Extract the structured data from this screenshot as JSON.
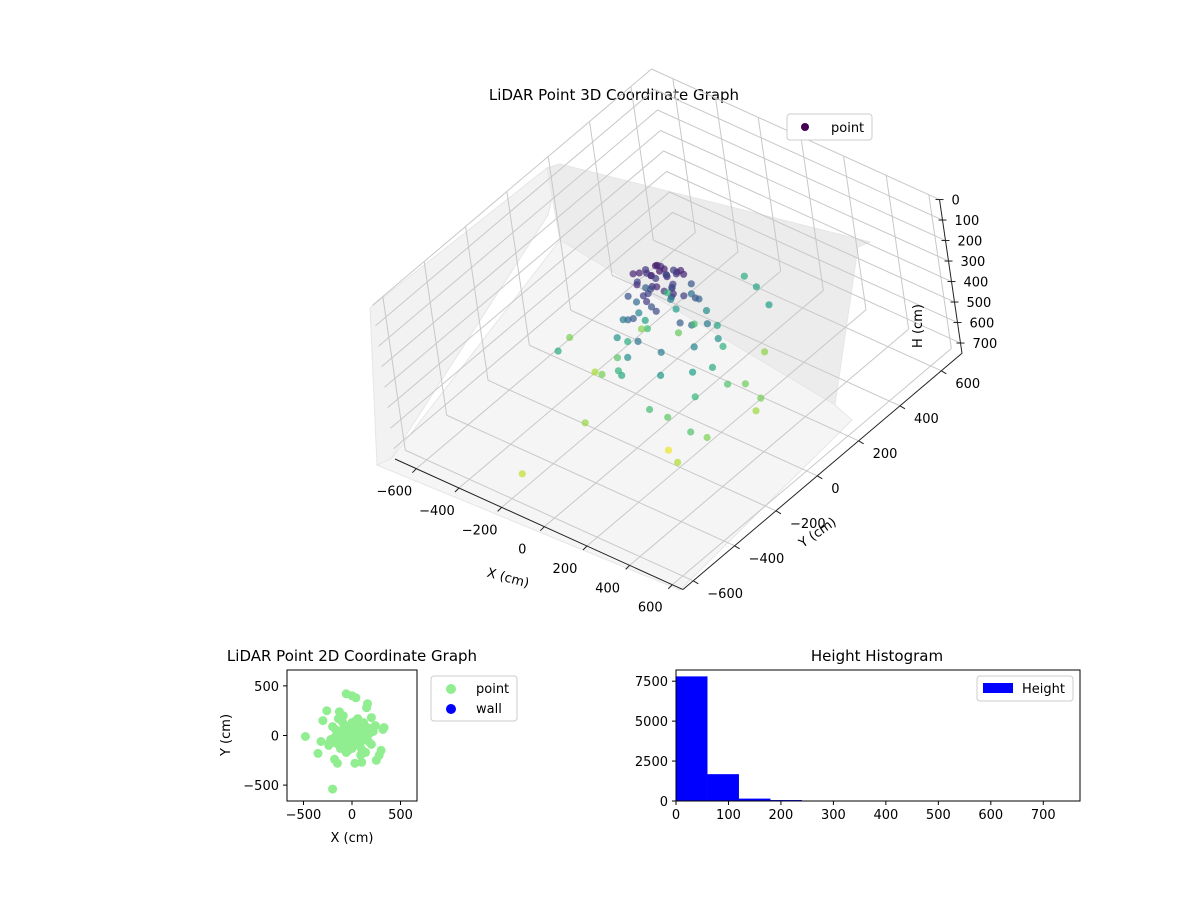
{
  "chart_data": [
    {
      "type": "scatter3d",
      "title": "LiDAR Point 3D Coordinate Graph",
      "xlabel": "X (cm)",
      "ylabel": "Y (cm)",
      "zlabel": "H (cm)",
      "xlim": [
        -700,
        650
      ],
      "ylim": [
        -650,
        700
      ],
      "zlim": [
        0,
        750
      ],
      "z_inverted": true,
      "xticks": [
        -600,
        -400,
        -200,
        0,
        200,
        400,
        600
      ],
      "yticks": [
        -600,
        -400,
        -200,
        0,
        200,
        400,
        600
      ],
      "zticks": [
        0,
        100,
        200,
        300,
        400,
        500,
        600,
        700
      ],
      "grid": true,
      "legend": {
        "placement": "top-right",
        "entries": [
          "point"
        ]
      },
      "colormap": "viridis",
      "series": [
        {
          "name": "point",
          "points": [
            [
              0,
              0,
              30
            ],
            [
              20,
              -10,
              40
            ],
            [
              -20,
              10,
              50
            ],
            [
              10,
              20,
              60
            ],
            [
              -15,
              -20,
              70
            ],
            [
              30,
              10,
              80
            ],
            [
              -30,
              -5,
              90
            ],
            [
              5,
              30,
              100
            ],
            [
              -5,
              -30,
              110
            ],
            [
              40,
              -20,
              120
            ],
            [
              -40,
              20,
              130
            ],
            [
              25,
              35,
              140
            ],
            [
              -25,
              -35,
              150
            ],
            [
              50,
              0,
              160
            ],
            [
              -50,
              0,
              170
            ],
            [
              0,
              50,
              180
            ],
            [
              0,
              -50,
              190
            ],
            [
              60,
              30,
              60
            ],
            [
              -60,
              -30,
              70
            ],
            [
              35,
              -45,
              80
            ],
            [
              -35,
              45,
              90
            ],
            [
              70,
              -10,
              100
            ],
            [
              -70,
              10,
              110
            ],
            [
              15,
              65,
              120
            ],
            [
              -15,
              -65,
              130
            ],
            [
              80,
              40,
              70
            ],
            [
              -80,
              -40,
              75
            ],
            [
              45,
              60,
              85
            ],
            [
              -45,
              -60,
              95
            ],
            [
              90,
              -25,
              105
            ],
            [
              -90,
              25,
              115
            ],
            [
              20,
              -85,
              125
            ],
            [
              -20,
              85,
              135
            ],
            [
              100,
              10,
              140
            ],
            [
              -100,
              -10,
              150
            ],
            [
              55,
              -80,
              160
            ],
            [
              -55,
              80,
              170
            ],
            [
              110,
              50,
              180
            ],
            [
              -110,
              -50,
              190
            ],
            [
              30,
              110,
              200
            ],
            [
              -30,
              -110,
              210
            ],
            [
              120,
              -40,
              220
            ],
            [
              -120,
              40,
              230
            ],
            [
              75,
              95,
              240
            ],
            [
              -75,
              -95,
              250
            ],
            [
              130,
              0,
              260
            ],
            [
              -130,
              0,
              270
            ],
            [
              0,
              130,
              280
            ],
            [
              0,
              -130,
              290
            ],
            [
              140,
              60,
              300
            ],
            [
              -140,
              -60,
              310
            ],
            [
              85,
              -110,
              320
            ],
            [
              -85,
              110,
              330
            ],
            [
              150,
              -20,
              340
            ],
            [
              -150,
              20,
              350
            ],
            [
              40,
              150,
              360
            ],
            [
              -40,
              -150,
              370
            ],
            [
              160,
              80,
              380
            ],
            [
              -160,
              -80,
              390
            ],
            [
              100,
              -140,
              400
            ],
            [
              -100,
              140,
              410
            ],
            [
              170,
              -60,
              420
            ],
            [
              -170,
              60,
              430
            ],
            [
              60,
              170,
              440
            ],
            [
              -60,
              -170,
              450
            ],
            [
              180,
              20,
              460
            ],
            [
              -180,
              -20,
              470
            ],
            [
              120,
              130,
              480
            ],
            [
              -120,
              -130,
              490
            ],
            [
              200,
              -90,
              500
            ],
            [
              -200,
              90,
              510
            ],
            [
              90,
              -200,
              520
            ],
            [
              -90,
              200,
              530
            ],
            [
              220,
              40,
              540
            ],
            [
              -220,
              -40,
              550
            ],
            [
              140,
              -170,
              560
            ],
            [
              -140,
              170,
              570
            ],
            [
              240,
              100,
              580
            ],
            [
              -240,
              -100,
              590
            ],
            [
              300,
              -150,
              600
            ],
            [
              -300,
              150,
              610
            ],
            [
              150,
              280,
              620
            ],
            [
              -150,
              -280,
              630
            ],
            [
              320,
              60,
              640
            ],
            [
              -320,
              -60,
              650
            ],
            [
              250,
              -250,
              660
            ],
            [
              -480,
              -10,
              600
            ],
            [
              330,
              80,
              590
            ],
            [
              -200,
              -540,
              680
            ],
            [
              120,
              -170,
              730
            ],
            [
              -60,
              420,
              470
            ],
            [
              40,
              380,
              440
            ],
            [
              -260,
              250,
              500
            ],
            [
              280,
              -200,
              540
            ],
            [
              160,
              320,
              420
            ],
            [
              -350,
              -180,
              460
            ]
          ]
        }
      ]
    },
    {
      "type": "scatter",
      "title": "LiDAR Point 2D Coordinate Graph",
      "xlabel": "X (cm)",
      "ylabel": "Y (cm)",
      "xlim": [
        -670,
        670
      ],
      "ylim": [
        -660,
        660
      ],
      "xticks": [
        -500,
        0,
        500
      ],
      "yticks": [
        -500,
        0,
        500
      ],
      "legend": {
        "placement": "outside-right",
        "entries": [
          "point",
          "wall"
        ]
      },
      "series": [
        {
          "name": "point",
          "color": "#90ee90",
          "points": [
            [
              0,
              0
            ],
            [
              20,
              -10
            ],
            [
              -20,
              10
            ],
            [
              10,
              20
            ],
            [
              -15,
              -20
            ],
            [
              30,
              10
            ],
            [
              -30,
              -5
            ],
            [
              5,
              30
            ],
            [
              -5,
              -30
            ],
            [
              40,
              -20
            ],
            [
              -40,
              20
            ],
            [
              25,
              35
            ],
            [
              -25,
              -35
            ],
            [
              50,
              0
            ],
            [
              -50,
              0
            ],
            [
              0,
              50
            ],
            [
              0,
              -50
            ],
            [
              60,
              30
            ],
            [
              -60,
              -30
            ],
            [
              35,
              -45
            ],
            [
              -35,
              45
            ],
            [
              70,
              -10
            ],
            [
              -70,
              10
            ],
            [
              15,
              65
            ],
            [
              -15,
              -65
            ],
            [
              80,
              40
            ],
            [
              -80,
              -40
            ],
            [
              45,
              60
            ],
            [
              -45,
              -60
            ],
            [
              90,
              -25
            ],
            [
              -90,
              25
            ],
            [
              20,
              -85
            ],
            [
              -20,
              85
            ],
            [
              100,
              10
            ],
            [
              -100,
              -10
            ],
            [
              55,
              -80
            ],
            [
              -55,
              80
            ],
            [
              110,
              50
            ],
            [
              -110,
              -50
            ],
            [
              30,
              110
            ],
            [
              -30,
              -110
            ],
            [
              120,
              -40
            ],
            [
              -120,
              40
            ],
            [
              75,
              95
            ],
            [
              -75,
              -95
            ],
            [
              130,
              0
            ],
            [
              -130,
              0
            ],
            [
              0,
              130
            ],
            [
              0,
              -130
            ],
            [
              140,
              60
            ],
            [
              -140,
              -60
            ],
            [
              85,
              -110
            ],
            [
              -85,
              110
            ],
            [
              150,
              -20
            ],
            [
              -150,
              20
            ],
            [
              40,
              150
            ],
            [
              -40,
              -150
            ],
            [
              160,
              80
            ],
            [
              -160,
              -80
            ],
            [
              100,
              -140
            ],
            [
              -100,
              140
            ],
            [
              170,
              -60
            ],
            [
              -170,
              60
            ],
            [
              60,
              170
            ],
            [
              -60,
              -170
            ],
            [
              180,
              20
            ],
            [
              -180,
              -20
            ],
            [
              120,
              130
            ],
            [
              -120,
              -130
            ],
            [
              200,
              -90
            ],
            [
              -200,
              90
            ],
            [
              90,
              -200
            ],
            [
              -90,
              200
            ],
            [
              220,
              40
            ],
            [
              -220,
              -40
            ],
            [
              140,
              -170
            ],
            [
              -140,
              170
            ],
            [
              240,
              100
            ],
            [
              -240,
              -100
            ],
            [
              -150,
              -280
            ],
            [
              150,
              280
            ],
            [
              320,
              60
            ],
            [
              -320,
              -60
            ],
            [
              250,
              -250
            ],
            [
              300,
              -150
            ],
            [
              -300,
              150
            ],
            [
              -480,
              -10
            ],
            [
              330,
              80
            ],
            [
              -200,
              -540
            ],
            [
              120,
              -170
            ],
            [
              -60,
              420
            ],
            [
              40,
              380
            ],
            [
              -260,
              250
            ],
            [
              280,
              -200
            ],
            [
              160,
              320
            ],
            [
              -350,
              -180
            ],
            [
              0,
              400
            ],
            [
              30,
              -280
            ],
            [
              -130,
              240
            ],
            [
              200,
              180
            ],
            [
              -230,
              -70
            ],
            [
              100,
              -270
            ],
            [
              -180,
              -240
            ]
          ]
        },
        {
          "name": "wall",
          "color": "#0000ff",
          "points": []
        }
      ]
    },
    {
      "type": "bar",
      "title": "Height Histogram",
      "xlabel": "",
      "ylabel": "",
      "xlim": [
        0,
        770
      ],
      "ylim": [
        0,
        8200
      ],
      "xticks": [
        0,
        100,
        200,
        300,
        400,
        500,
        600,
        700
      ],
      "yticks": [
        0,
        2500,
        5000,
        7500
      ],
      "legend": {
        "placement": "top-right",
        "entries": [
          "Height"
        ]
      },
      "series": [
        {
          "name": "Height",
          "color": "#0000ff",
          "bin_edges": [
            0,
            60,
            120,
            180,
            240,
            300,
            360,
            420,
            480,
            540,
            600,
            660,
            733
          ],
          "values": [
            7800,
            1680,
            150,
            60,
            8,
            5,
            3,
            3,
            2,
            2,
            1,
            1
          ]
        }
      ]
    }
  ]
}
